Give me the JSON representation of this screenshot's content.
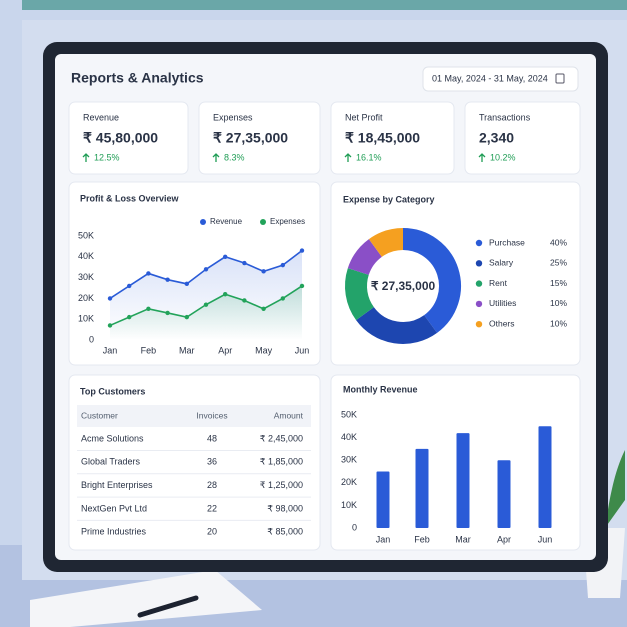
{
  "header": {
    "title": "Reports & Analytics",
    "date_range": "01 May, 2024 - 31 May, 2024"
  },
  "kpis": [
    {
      "label": "Revenue",
      "value": "₹ 45,80,000",
      "change": "12.5%"
    },
    {
      "label": "Expenses",
      "value": "₹ 27,35,000",
      "change": "8.3%"
    },
    {
      "label": "Net Profit",
      "value": "₹ 18,45,000",
      "change": "16.1%"
    },
    {
      "label": "Transactions",
      "value": "2,340",
      "change": "10.2%"
    }
  ],
  "profit_loss": {
    "type": "line",
    "title": "Profit & Loss Overview",
    "categories": [
      "Jan",
      null,
      "Feb",
      null,
      "Mar",
      null,
      "Apr",
      null,
      "May",
      null,
      "Jun"
    ],
    "series": [
      {
        "name": "Revenue",
        "color": "#2a5bd7",
        "values": [
          20000,
          26000,
          32000,
          29000,
          27000,
          34000,
          40000,
          37000,
          33000,
          36000,
          43000
        ]
      },
      {
        "name": "Expenses",
        "color": "#22a35a",
        "values": [
          7000,
          11000,
          15000,
          13000,
          11000,
          17000,
          22000,
          19000,
          15000,
          20000,
          26000
        ]
      }
    ],
    "ylim": [
      0,
      50000
    ],
    "yticks": [
      0,
      {
        "value": 10000,
        "label": "10K"
      },
      {
        "value": 20000,
        "label": "20K"
      },
      {
        "value": 30000,
        "label": "30K"
      },
      {
        "value": 40000,
        "label": "40K"
      },
      {
        "value": 50000,
        "label": "50K"
      }
    ]
  },
  "expense_by_category": {
    "type": "pie",
    "title": "Expense by Category",
    "center_label": "₹ 27,35,000",
    "categories": [
      "Purchase",
      "Salary",
      "Rent",
      "Utilities",
      "Others"
    ],
    "colors": [
      "#2a5bd7",
      "#1d46b0",
      "#23a36a",
      "#8a4fc7",
      "#f5a020"
    ],
    "values": [
      40,
      25,
      15,
      10,
      10
    ],
    "value_labels": [
      "40%",
      "25%",
      "15%",
      "10%",
      "10%"
    ]
  },
  "top_customers": {
    "title": "Top Customers",
    "columns": [
      "Customer",
      "Invoices",
      "Amount"
    ],
    "rows": [
      [
        "Acme Solutions",
        48,
        "₹ 2,45,000"
      ],
      [
        "Global Traders",
        36,
        "₹ 1,85,000"
      ],
      [
        "Bright Enterprises",
        28,
        "₹ 1,25,000"
      ],
      [
        "NextGen Pvt Ltd",
        22,
        "₹ 98,000"
      ],
      [
        "Prime Industries",
        20,
        "₹ 85,000"
      ]
    ]
  },
  "monthly_revenue": {
    "type": "bar",
    "title": "Monthly Revenue",
    "categories": [
      "Jan",
      "Feb",
      "Mar",
      "Apr",
      "Jun"
    ],
    "values": [
      25000,
      35000,
      42000,
      30000,
      45000
    ],
    "color": "#2a5bd7",
    "ylim": [
      0,
      50000
    ],
    "yticks": [
      0,
      {
        "value": 10000,
        "label": "10K"
      },
      {
        "value": 20000,
        "label": "20K"
      },
      {
        "value": 30000,
        "label": "30K"
      },
      {
        "value": 40000,
        "label": "40K"
      },
      {
        "value": 50000,
        "label": "50K"
      }
    ]
  }
}
